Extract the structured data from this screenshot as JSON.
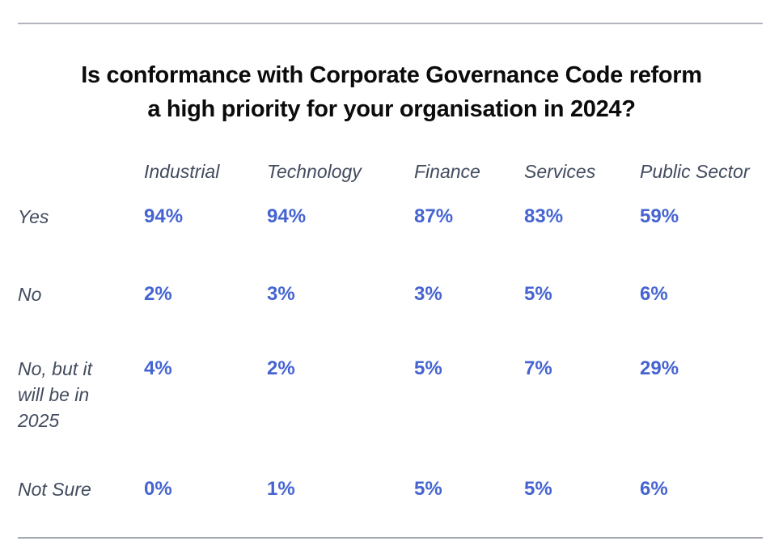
{
  "title_lines": [
    "Is conformance with Corporate Governance Code reform",
    "a high priority for your organisation in 2024?"
  ],
  "table": {
    "columns": [
      "Industrial",
      "Technology",
      "Finance",
      "Services",
      "Public Sector"
    ],
    "rows": [
      {
        "label": "Yes",
        "values": [
          "94%",
          "94%",
          "87%",
          "83%",
          "59%"
        ]
      },
      {
        "label": "No",
        "values": [
          "2%",
          "3%",
          "3%",
          "5%",
          "6%"
        ]
      },
      {
        "label": "No, but it will be in 2025",
        "values": [
          "4%",
          "2%",
          "5%",
          "7%",
          "29%"
        ]
      },
      {
        "label": "Not Sure",
        "values": [
          "0%",
          "1%",
          "5%",
          "5%",
          "6%"
        ]
      }
    ]
  },
  "colors": {
    "value_accent": "#4564d2",
    "label_gray": "#424c5e",
    "rule_gray": "#b2b5bd",
    "title_black": "#0b0b0b"
  },
  "chart_data": {
    "type": "table",
    "title": "Is conformance with Corporate Governance Code reform a high priority for your organisation in 2024?",
    "categories": [
      "Industrial",
      "Technology",
      "Finance",
      "Services",
      "Public Sector"
    ],
    "series": [
      {
        "name": "Yes",
        "values": [
          94,
          94,
          87,
          83,
          59
        ]
      },
      {
        "name": "No",
        "values": [
          2,
          3,
          3,
          5,
          6
        ]
      },
      {
        "name": "No, but it will be in 2025",
        "values": [
          4,
          2,
          5,
          7,
          29
        ]
      },
      {
        "name": "Not Sure",
        "values": [
          0,
          1,
          5,
          5,
          6
        ]
      }
    ],
    "value_unit": "%",
    "layout": "rows are answer options, columns are sectors, values shown as bold blue percentages"
  }
}
